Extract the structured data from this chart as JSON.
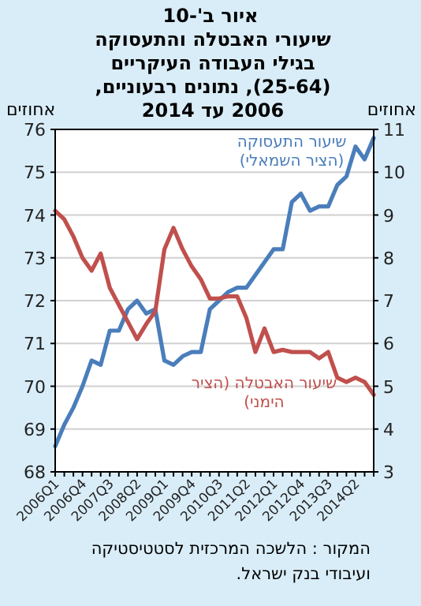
{
  "chart_data": {
    "type": "line",
    "title": "איור ב'-10",
    "subtitle": "שיעורי האבטלה והתעסוקה בגילי העבודה העיקריים (25-64), נתונים רבעוניים, 2006 עד 2014",
    "ylabel": "אחוזים",
    "y2label": "אחוזים",
    "annotations": [
      "המקור : הלשכה המרכזית לסטטיסטיקה ועיבודי בנק ישראל."
    ],
    "categories": [
      "2006Q1",
      null,
      null,
      "2006Q4",
      null,
      null,
      "2007Q3",
      null,
      null,
      "2008Q2",
      null,
      null,
      "2009Q1",
      null,
      null,
      "2009Q4",
      null,
      null,
      "2010Q3",
      null,
      null,
      "2011Q2",
      null,
      null,
      "2012Q1",
      null,
      null,
      "2012Q4",
      null,
      null,
      "2013Q3",
      null,
      null,
      "2014Q2",
      null,
      null
    ],
    "series": [
      {
        "name": "שיעור התעסוקה (הציר השמאלי)",
        "color": "#4a7ebb",
        "axis": "y",
        "values": [
          68.6,
          69.1,
          69.5,
          70.0,
          70.6,
          70.5,
          71.3,
          71.3,
          71.8,
          72.0,
          71.7,
          71.8,
          70.6,
          70.5,
          70.7,
          70.8,
          70.8,
          71.8,
          72.0,
          72.2,
          72.3,
          72.3,
          72.6,
          72.9,
          73.2,
          73.2,
          74.3,
          74.5,
          74.1,
          74.2,
          74.2,
          74.7,
          74.9,
          75.6,
          75.3,
          75.8
        ]
      },
      {
        "name": "שיעור האבטלה (הציר הימני)",
        "color": "#c0504d",
        "axis": "y2",
        "values": [
          9.1,
          8.9,
          8.5,
          8.0,
          7.7,
          8.1,
          7.3,
          6.9,
          6.5,
          6.1,
          6.45,
          6.75,
          8.2,
          8.7,
          8.2,
          7.8,
          7.5,
          7.05,
          7.05,
          7.1,
          7.1,
          6.6,
          5.8,
          6.35,
          5.8,
          5.85,
          5.8,
          5.8,
          5.8,
          5.65,
          5.8,
          5.2,
          5.1,
          5.2,
          5.1,
          4.8
        ]
      }
    ],
    "ylim": [
      68,
      76
    ],
    "yticks": [
      68,
      69,
      70,
      71,
      72,
      73,
      74,
      75,
      76
    ],
    "y2lim": [
      3,
      11
    ],
    "y2ticks": [
      3,
      4,
      5,
      6,
      7,
      8,
      9,
      10,
      11
    ],
    "grid": "y"
  }
}
